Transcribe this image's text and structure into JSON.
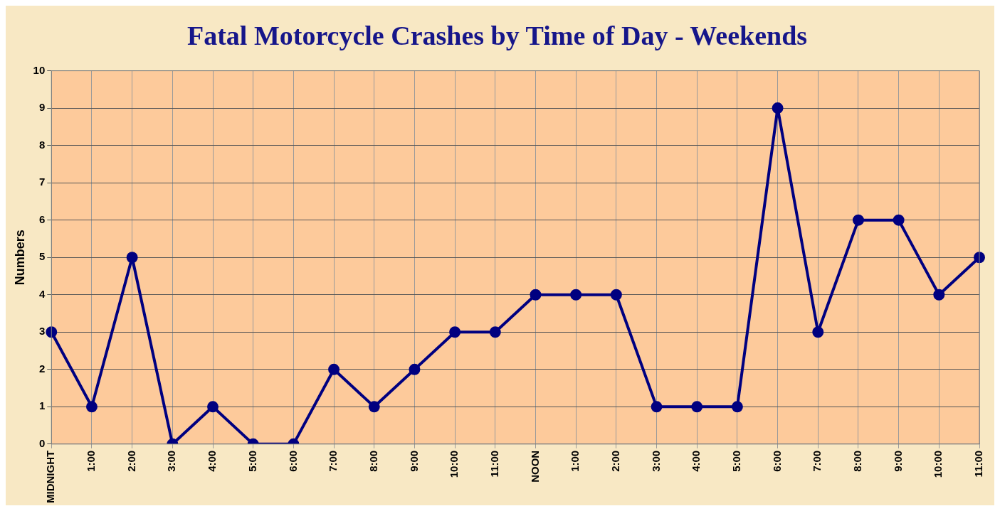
{
  "chart_data": {
    "type": "line",
    "title": "Fatal Motorcycle Crashes by Time of Day - Weekends",
    "ylabel": "Numbers",
    "categories": [
      "MIDNIGHT",
      "1:00",
      "2:00",
      "3:00",
      "4:00",
      "5:00",
      "6:00",
      "7:00",
      "8:00",
      "9:00",
      "10:00",
      "11:00",
      "NOON",
      "1:00",
      "2:00",
      "3:00",
      "4:00",
      "5:00",
      "6:00",
      "7:00",
      "8:00",
      "9:00",
      "10:00",
      "11:00"
    ],
    "series": [
      {
        "color": "#000080",
        "values": [
          3,
          1,
          5,
          0,
          1,
          0,
          0,
          2,
          1,
          2,
          3,
          3,
          4,
          4,
          4,
          1,
          1,
          1,
          9,
          3,
          6,
          6,
          4,
          5
        ]
      }
    ],
    "ylim": [
      0,
      10
    ],
    "yticks": [
      0,
      1,
      2,
      3,
      4,
      5,
      6,
      7,
      8,
      9,
      10
    ],
    "grid": true,
    "legend": false,
    "marker": "circle",
    "line_style": "solid"
  }
}
